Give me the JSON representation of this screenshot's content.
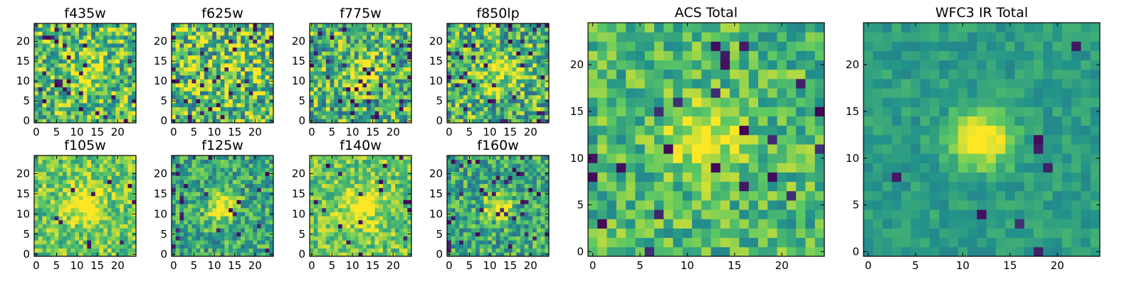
{
  "figure": {
    "background": "#ffffff",
    "colormap": "viridis"
  },
  "chart_data": [
    {
      "type": "heatmap",
      "title": "f435w",
      "xlim": [
        0,
        24
      ],
      "ylim": [
        0,
        24
      ],
      "x_ticks": [
        0,
        5,
        10,
        15,
        20
      ],
      "y_ticks": [
        0,
        5,
        10,
        15,
        20
      ],
      "grid_size": 25,
      "value_range": [
        0,
        1
      ],
      "peak": [
        0.25,
        0.45,
        0.25
      ],
      "noise": 0.32,
      "seed": 11,
      "hole_prob": 0.04
    },
    {
      "type": "heatmap",
      "title": "f625w",
      "xlim": [
        0,
        24
      ],
      "ylim": [
        0,
        24
      ],
      "x_ticks": [
        0,
        5,
        10,
        15,
        20
      ],
      "y_ticks": [
        0,
        5,
        10,
        15,
        20
      ],
      "grid_size": 25,
      "value_range": [
        0,
        1
      ],
      "peak": [
        0.15,
        0.45,
        0.25
      ],
      "noise": 0.38,
      "seed": 23,
      "hole_prob": 0.05
    },
    {
      "type": "heatmap",
      "title": "f775w",
      "xlim": [
        0,
        24
      ],
      "ylim": [
        0,
        24
      ],
      "x_ticks": [
        0,
        5,
        10,
        15,
        20
      ],
      "y_ticks": [
        0,
        5,
        10,
        15,
        20
      ],
      "grid_size": 25,
      "value_range": [
        0,
        1
      ],
      "peak": [
        0.3,
        0.42,
        0.2
      ],
      "noise": 0.34,
      "seed": 37,
      "hole_prob": 0.05
    },
    {
      "type": "heatmap",
      "title": "f850lp",
      "xlim": [
        0,
        24
      ],
      "ylim": [
        0,
        24
      ],
      "x_ticks": [
        0,
        5,
        10,
        15,
        20
      ],
      "y_ticks": [
        0,
        5,
        10,
        15,
        20
      ],
      "grid_size": 25,
      "value_range": [
        0,
        1
      ],
      "peak": [
        0.3,
        0.42,
        0.2
      ],
      "noise": 0.34,
      "seed": 41,
      "hole_prob": 0.05
    },
    {
      "type": "heatmap",
      "title": "f105w",
      "xlim": [
        0,
        24
      ],
      "ylim": [
        0,
        24
      ],
      "x_ticks": [
        0,
        5,
        10,
        15,
        20
      ],
      "y_ticks": [
        0,
        5,
        10,
        15,
        20
      ],
      "grid_size": 25,
      "value_range": [
        0,
        1
      ],
      "peak": [
        0.35,
        0.45,
        0.3
      ],
      "noise": 0.22,
      "seed": 53,
      "hole_prob": 0.02
    },
    {
      "type": "heatmap",
      "title": "f125w",
      "xlim": [
        0,
        24
      ],
      "ylim": [
        0,
        24
      ],
      "x_ticks": [
        0,
        5,
        10,
        15,
        20
      ],
      "y_ticks": [
        0,
        5,
        10,
        15,
        20
      ],
      "grid_size": 25,
      "value_range": [
        0,
        1
      ],
      "peak": [
        0.5,
        0.35,
        0.15
      ],
      "noise": 0.25,
      "seed": 61,
      "hole_prob": 0.04
    },
    {
      "type": "heatmap",
      "title": "f140w",
      "xlim": [
        0,
        24
      ],
      "ylim": [
        0,
        24
      ],
      "x_ticks": [
        0,
        5,
        10,
        15,
        20
      ],
      "y_ticks": [
        0,
        5,
        10,
        15,
        20
      ],
      "grid_size": 25,
      "value_range": [
        0,
        1
      ],
      "peak": [
        0.35,
        0.45,
        0.3
      ],
      "noise": 0.22,
      "seed": 71,
      "hole_prob": 0.03
    },
    {
      "type": "heatmap",
      "title": "f160w",
      "xlim": [
        0,
        24
      ],
      "ylim": [
        0,
        24
      ],
      "x_ticks": [
        0,
        5,
        10,
        15,
        20
      ],
      "y_ticks": [
        0,
        5,
        10,
        15,
        20
      ],
      "grid_size": 25,
      "value_range": [
        0,
        1
      ],
      "peak": [
        0.5,
        0.33,
        0.15
      ],
      "noise": 0.26,
      "seed": 83,
      "hole_prob": 0.06
    },
    {
      "type": "heatmap",
      "title": "ACS Total",
      "xlim": [
        0,
        24
      ],
      "ylim": [
        0,
        24
      ],
      "x_ticks": [
        0,
        5,
        10,
        15,
        20
      ],
      "y_ticks": [
        0,
        5,
        10,
        15,
        20
      ],
      "grid_size": 25,
      "value_range": [
        0,
        1
      ],
      "peak": [
        0.35,
        0.42,
        0.22
      ],
      "noise": 0.22,
      "seed": 97,
      "hole_prob": 0.04
    },
    {
      "type": "heatmap",
      "title": "WFC3 IR Total",
      "xlim": [
        0,
        24
      ],
      "ylim": [
        0,
        24
      ],
      "x_ticks": [
        0,
        5,
        10,
        15,
        20
      ],
      "y_ticks": [
        0,
        5,
        10,
        15,
        20
      ],
      "grid_size": 25,
      "value_range": [
        0,
        1
      ],
      "peak": [
        0.55,
        0.3,
        0.1
      ],
      "noise": 0.1,
      "seed": 101,
      "hole_prob": 0.015
    }
  ]
}
